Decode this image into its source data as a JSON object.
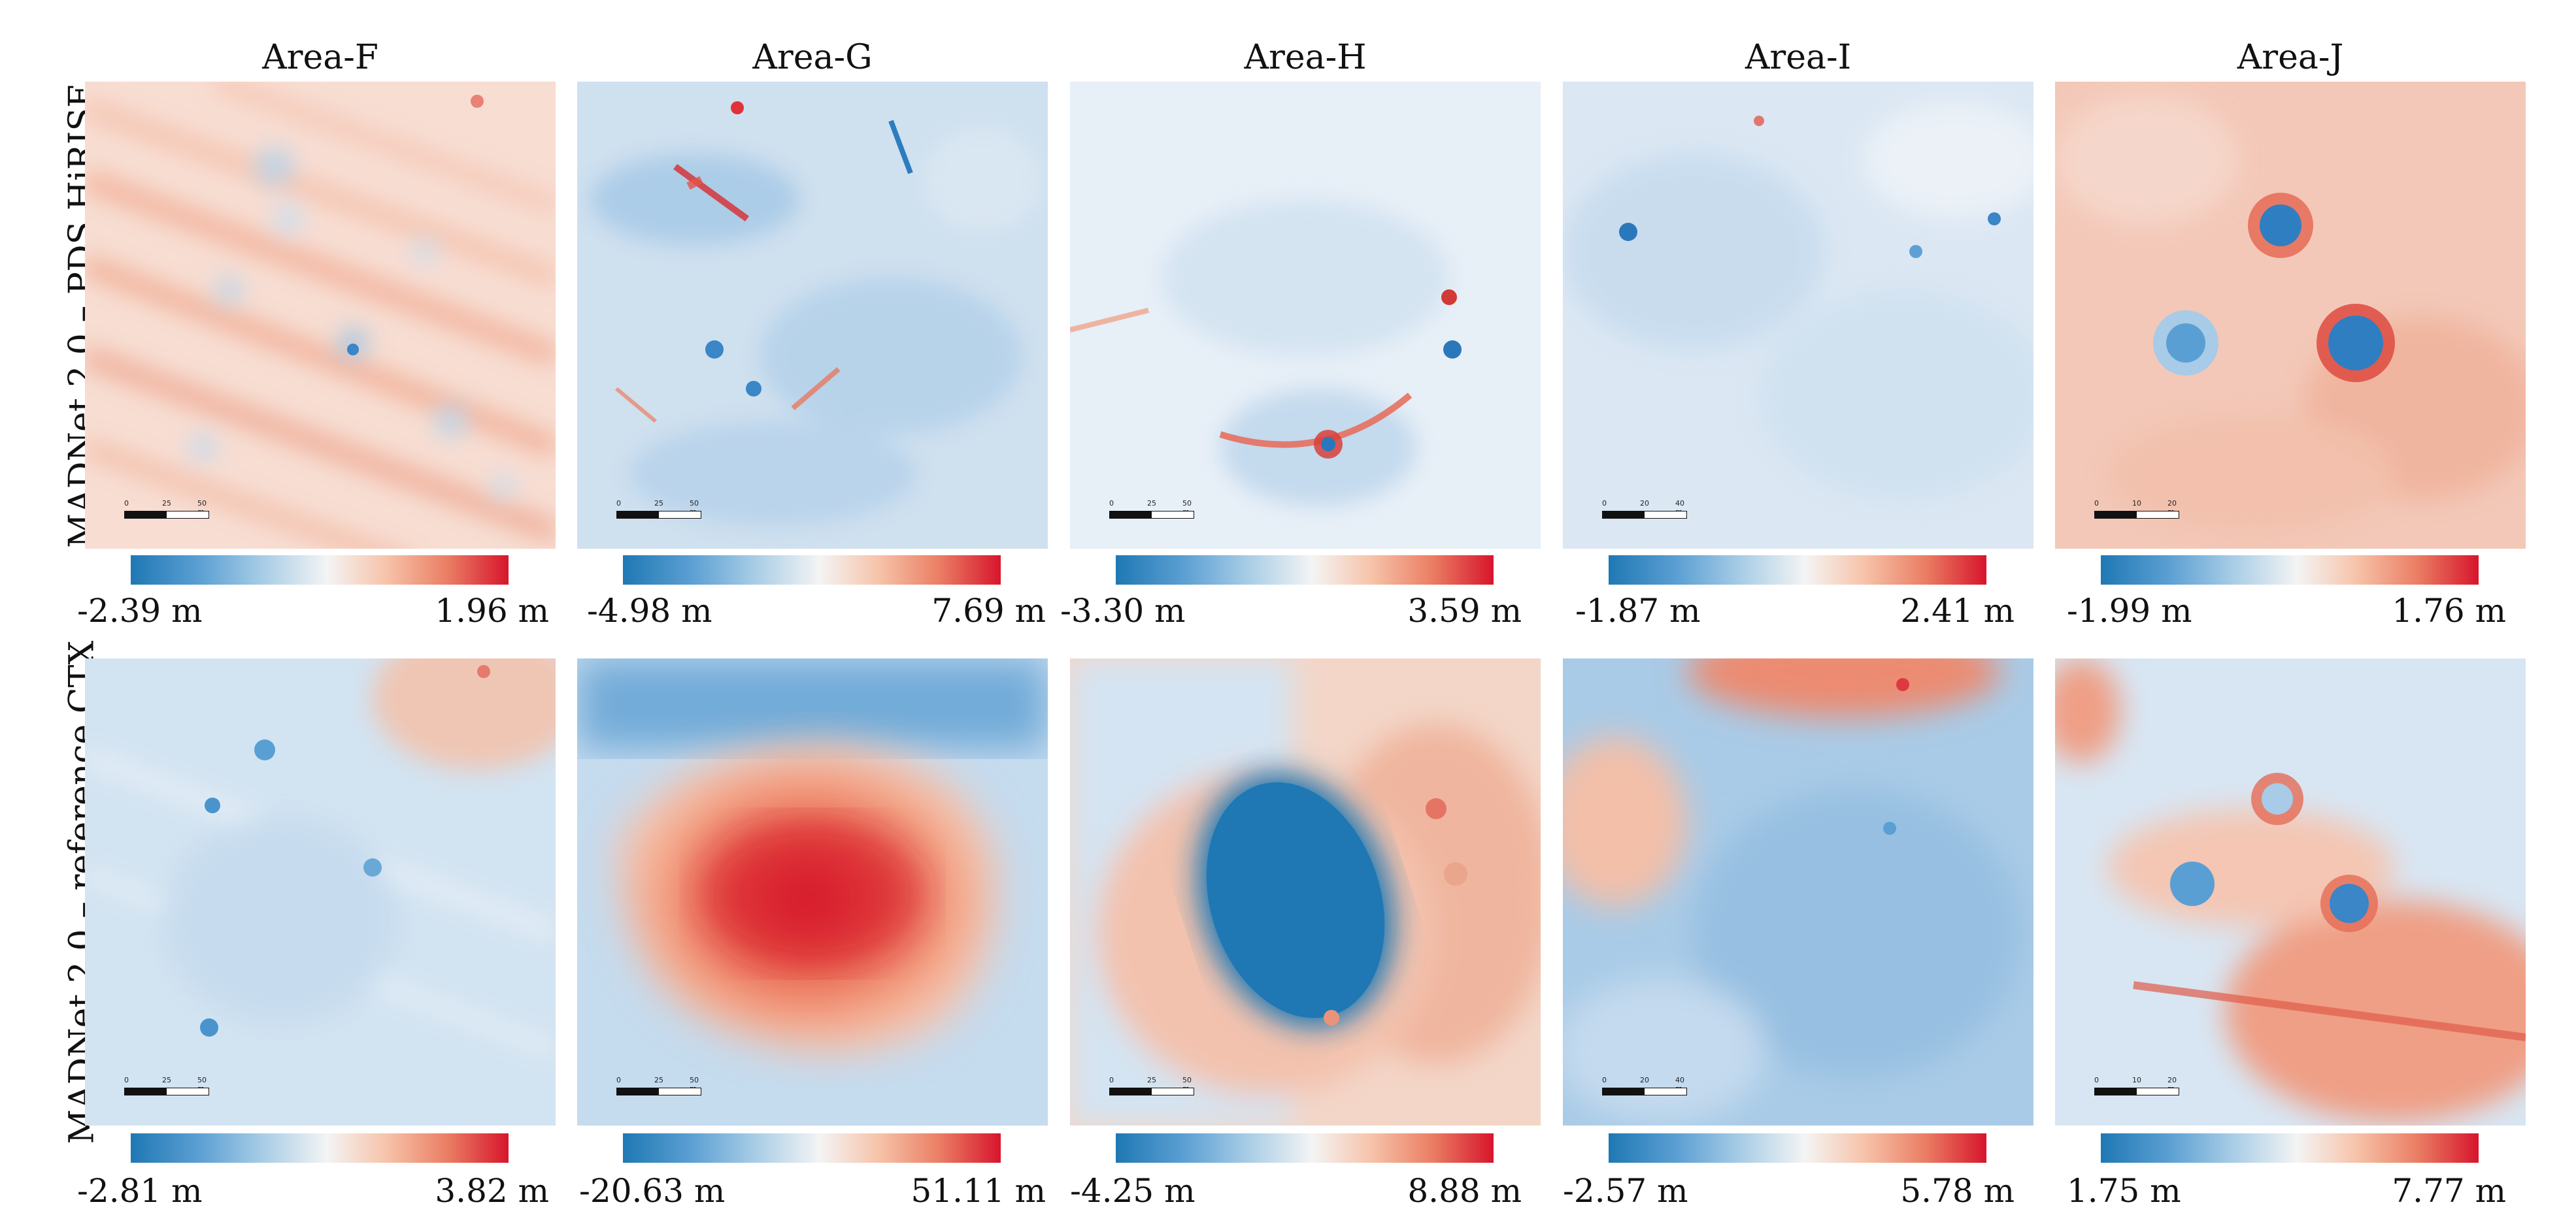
{
  "columns": [
    {
      "title": "Area-F"
    },
    {
      "title": "Area-G"
    },
    {
      "title": "Area-H"
    },
    {
      "title": "Area-I"
    },
    {
      "title": "Area-J"
    }
  ],
  "rows": [
    {
      "label": "MADNet 2.0 – PDS HiRISE",
      "panels": [
        {
          "min": "-2.39 m",
          "max": "1.96 m",
          "scale": [
            "0",
            "25",
            "50 m"
          ]
        },
        {
          "min": "-4.98 m",
          "max": "7.69 m",
          "scale": [
            "0",
            "25",
            "50 m"
          ]
        },
        {
          "min": "-3.30 m",
          "max": "3.59 m",
          "scale": [
            "0",
            "25",
            "50 m"
          ]
        },
        {
          "min": "-1.87 m",
          "max": "2.41 m",
          "scale": [
            "0",
            "20",
            "40 m"
          ]
        },
        {
          "min": "-1.99 m",
          "max": "1.76 m",
          "scale": [
            "0",
            "10",
            "20 m"
          ]
        }
      ]
    },
    {
      "label": "MADNet 2.0 – reference CTX",
      "panels": [
        {
          "min": "-2.81 m",
          "max": "3.82 m",
          "scale": [
            "0",
            "25",
            "50 m"
          ]
        },
        {
          "min": "-20.63 m",
          "max": "51.11 m",
          "scale": [
            "0",
            "25",
            "50 m"
          ]
        },
        {
          "min": "-4.25 m",
          "max": "8.88 m",
          "scale": [
            "0",
            "25",
            "50 m"
          ]
        },
        {
          "min": "-2.57 m",
          "max": "5.78 m",
          "scale": [
            "0",
            "20",
            "40 m"
          ]
        },
        {
          "min": "1.75 m",
          "max": "7.77 m",
          "scale": [
            "0",
            "10",
            "20 m"
          ]
        }
      ]
    }
  ],
  "colormap": {
    "low": "#1f78b4",
    "mid": "#f4f4f4",
    "high": "#d7152c"
  }
}
